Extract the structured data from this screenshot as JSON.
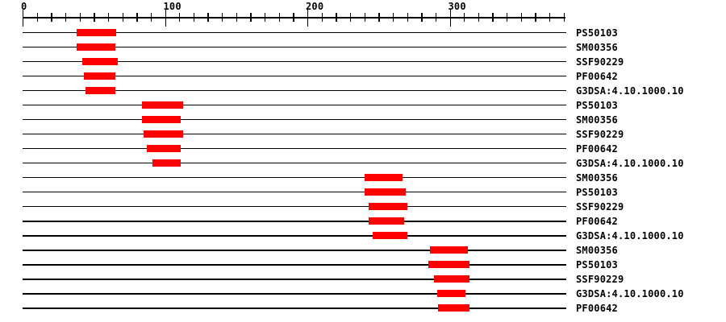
{
  "chart_data": {
    "type": "bar",
    "orientation": "horizontal",
    "description": "Protein sequence domain-match tracks: red bars mark matched regions on a residue ruler",
    "axis": {
      "min": 0,
      "max": 380,
      "minor_tick_interval": 10,
      "major_tick_interval": 100,
      "major_tick_labels": [
        "0",
        "100",
        "200",
        "300"
      ]
    },
    "colors": {
      "bar": "#ff0000",
      "line": "#000000",
      "background": "#ffffff",
      "text": "#000000"
    },
    "rows": [
      {
        "label": "PS50103",
        "start": 38,
        "end": 66
      },
      {
        "label": "SM00356",
        "start": 38,
        "end": 65
      },
      {
        "label": "SSF90229",
        "start": 42,
        "end": 67
      },
      {
        "label": "PF00642",
        "start": 43,
        "end": 65
      },
      {
        "label": "G3DSA:4.10.1000.10",
        "start": 44,
        "end": 65
      },
      {
        "label": "PS50103",
        "start": 84,
        "end": 113
      },
      {
        "label": "SM00356",
        "start": 84,
        "end": 111
      },
      {
        "label": "SSF90229",
        "start": 85,
        "end": 113
      },
      {
        "label": "PF00642",
        "start": 87,
        "end": 111
      },
      {
        "label": "G3DSA:4.10.1000.10",
        "start": 91,
        "end": 111
      },
      {
        "label": "SM00356",
        "start": 240,
        "end": 267
      },
      {
        "label": "PS50103",
        "start": 240,
        "end": 269
      },
      {
        "label": "SSF90229",
        "start": 243,
        "end": 270
      },
      {
        "label": "PF00642",
        "start": 243,
        "end": 268
      },
      {
        "label": "G3DSA:4.10.1000.10",
        "start": 246,
        "end": 270
      },
      {
        "label": "SM00356",
        "start": 286,
        "end": 313
      },
      {
        "label": "PS50103",
        "start": 285,
        "end": 314
      },
      {
        "label": "SSF90229",
        "start": 289,
        "end": 314
      },
      {
        "label": "G3DSA:4.10.1000.10",
        "start": 291,
        "end": 311
      },
      {
        "label": "PF00642",
        "start": 292,
        "end": 314
      }
    ]
  }
}
